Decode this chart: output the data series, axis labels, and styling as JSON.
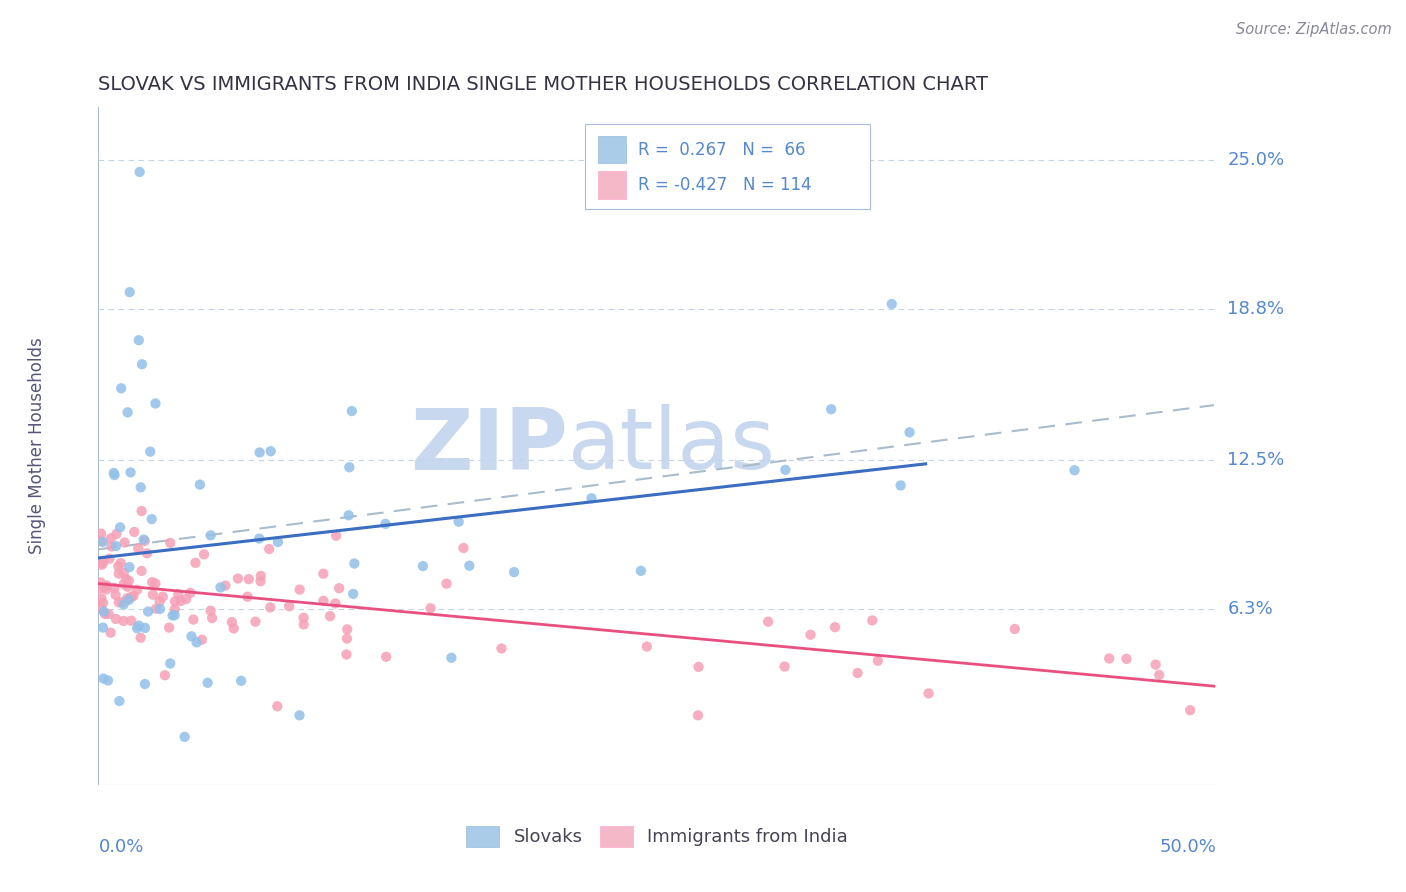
{
  "title": "SLOVAK VS IMMIGRANTS FROM INDIA SINGLE MOTHER HOUSEHOLDS CORRELATION CHART",
  "source": "Source: ZipAtlas.com",
  "ylabel": "Single Mother Households",
  "ytick_labels": [
    "25.0%",
    "18.8%",
    "12.5%",
    "6.3%"
  ],
  "ytick_values": [
    0.25,
    0.188,
    0.125,
    0.063
  ],
  "xlim": [
    0.0,
    0.5
  ],
  "ylim": [
    -0.01,
    0.272
  ],
  "blue_color": "#92C0E8",
  "pink_color": "#F5A0B5",
  "blue_fill": "#AACCE8",
  "pink_fill": "#F5B8C8",
  "trend_blue": "#3B6DC0",
  "trend_pink": "#E85080",
  "dash_line_color": "#AABBCC",
  "grid_color": "#C5D5E8",
  "watermark_zip_color": "#C8D8EE",
  "watermark_atlas_color": "#C8D8EE",
  "title_color": "#333344",
  "axis_label_color": "#5588CC",
  "source_color": "#888899",
  "legend_text_color": "#5588CC",
  "bottom_legend_text_color": "#444455"
}
